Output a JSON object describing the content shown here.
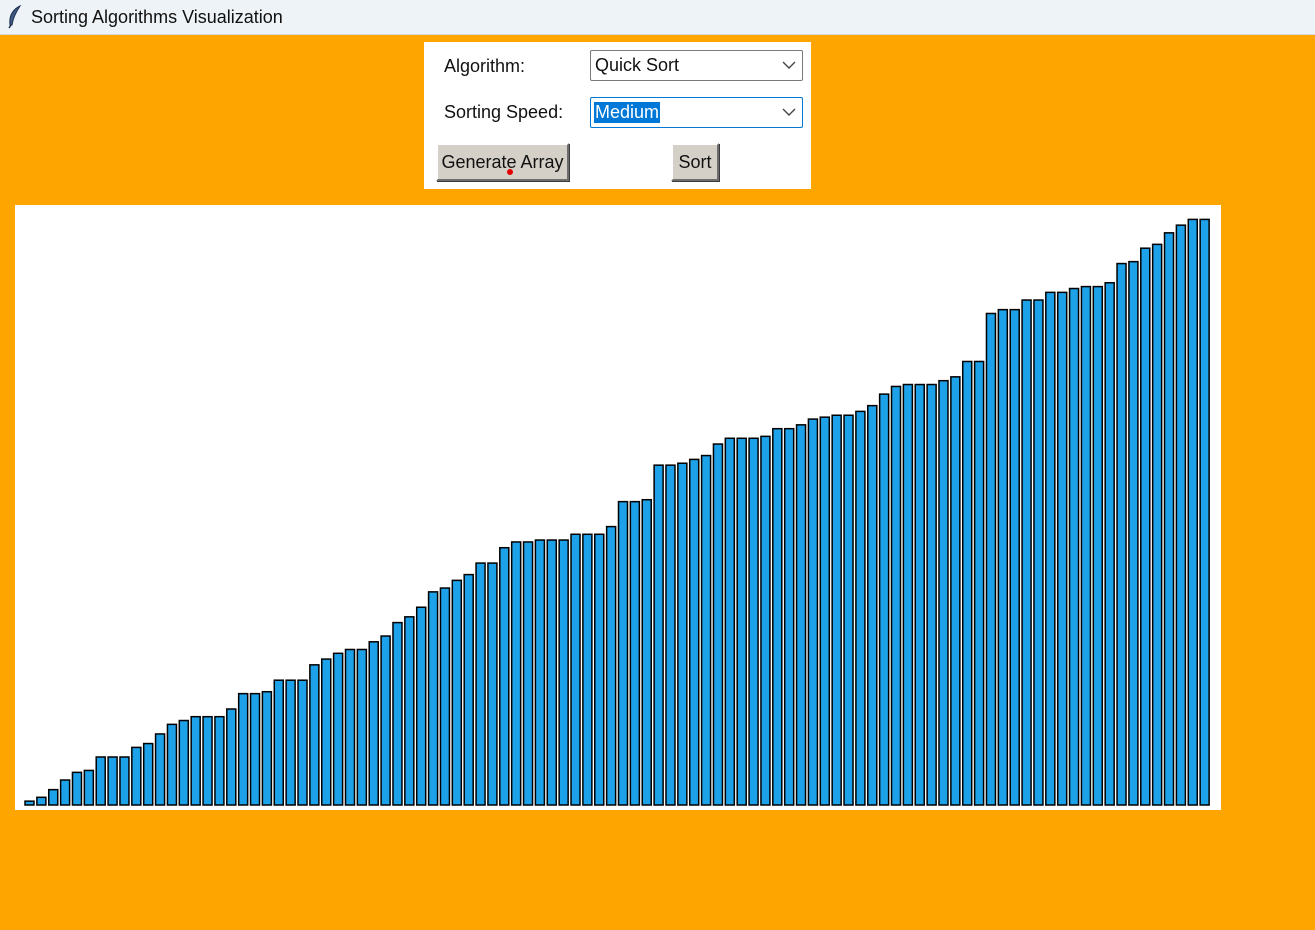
{
  "window": {
    "title": "Sorting Algorithms Visualization",
    "icon": "feather-icon"
  },
  "controls": {
    "algorithm_label": "Algorithm:",
    "algorithm_value": "Quick Sort",
    "speed_label": "Sorting Speed:",
    "speed_value": "Medium",
    "generate_label": "Generate Array",
    "sort_label": "Sort"
  },
  "colors": {
    "background": "#FFA500",
    "bar_fill": "#1da1e8",
    "bar_stroke": "#000000",
    "canvas": "#ffffff"
  },
  "chart_data": {
    "type": "bar",
    "sorted": "ascending",
    "values": [
      2,
      4,
      8,
      13,
      17,
      18,
      25,
      25,
      25,
      30,
      32,
      37,
      42,
      44,
      46,
      46,
      46,
      50,
      58,
      58,
      59,
      65,
      65,
      65,
      73,
      76,
      79,
      81,
      81,
      85,
      88,
      95,
      98,
      103,
      111,
      113,
      117,
      120,
      126,
      126,
      134,
      137,
      137,
      138,
      138,
      138,
      141,
      141,
      141,
      145,
      158,
      158,
      159,
      177,
      177,
      178,
      180,
      182,
      188,
      191,
      191,
      191,
      192,
      196,
      196,
      198,
      201,
      202,
      203,
      203,
      205,
      208,
      214,
      218,
      219,
      219,
      219,
      221,
      223,
      231,
      231,
      256,
      258,
      258,
      263,
      263,
      267,
      267,
      269,
      270,
      270,
      272,
      282,
      283,
      290,
      292,
      298,
      302,
      305,
      305
    ]
  }
}
